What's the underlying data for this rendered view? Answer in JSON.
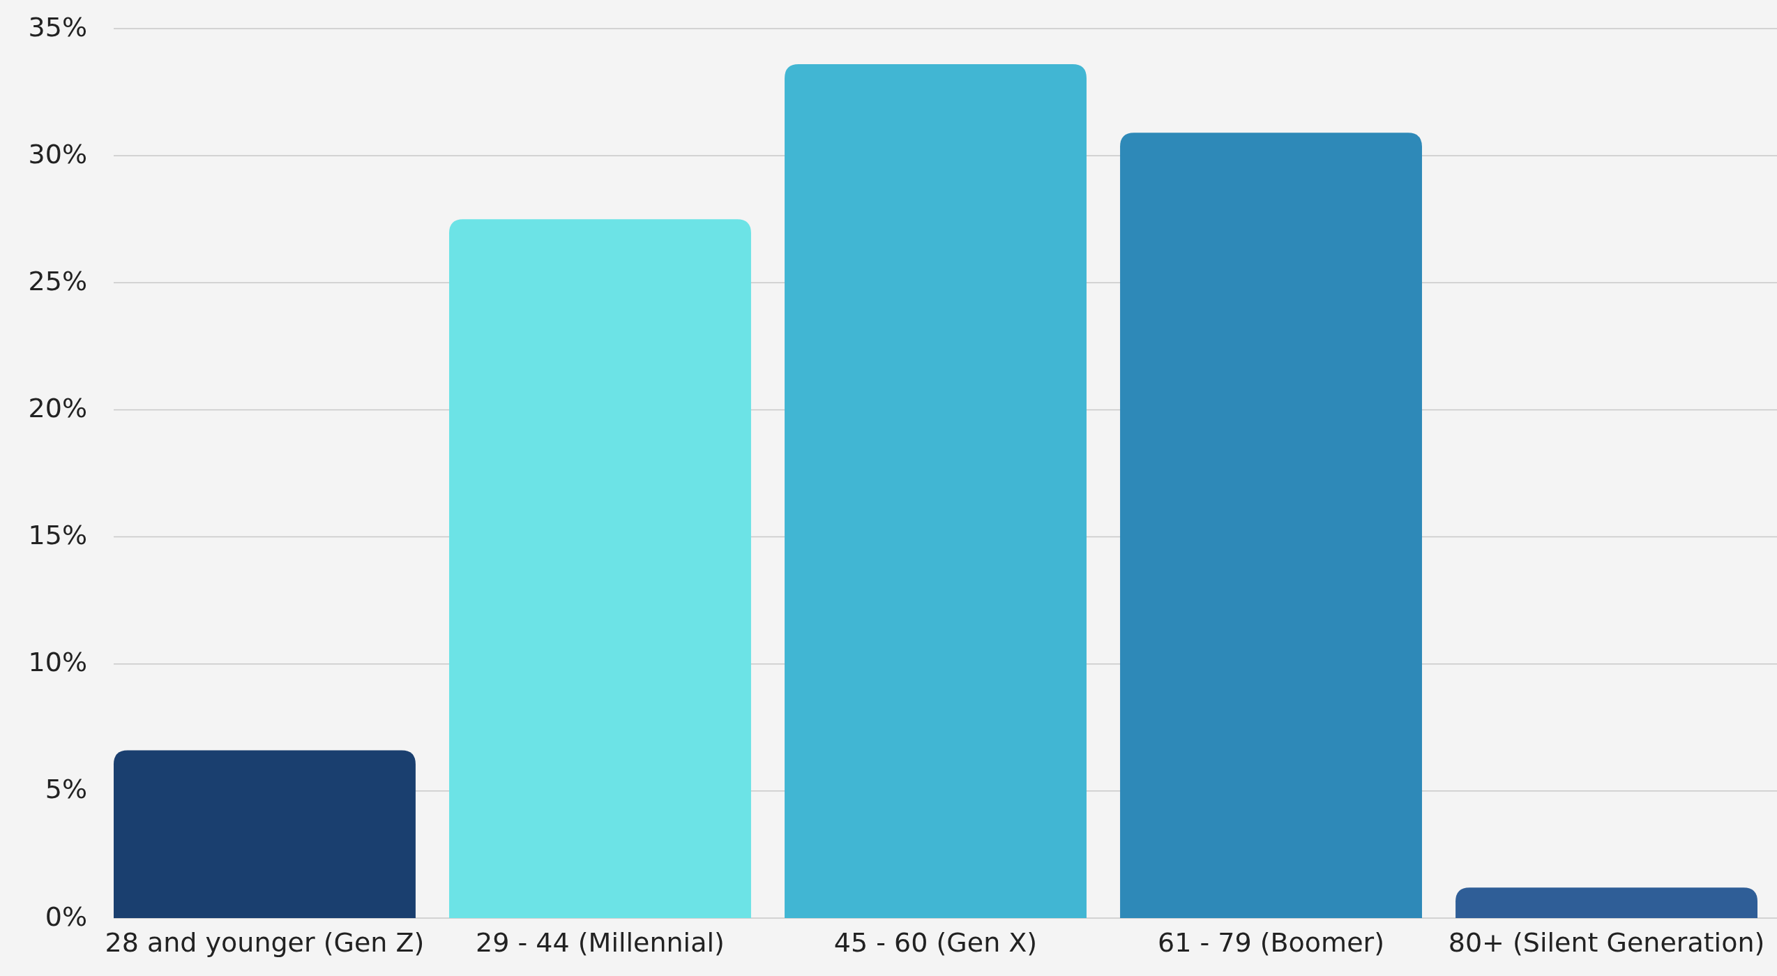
{
  "chart_data": {
    "type": "bar",
    "categories": [
      "28 and younger (Gen Z)",
      "29 - 44 (Millennial)",
      "45 - 60 (Gen X)",
      "61 - 79 (Boomer)",
      "80+ (Silent Generation)"
    ],
    "values": [
      6.6,
      27.5,
      33.6,
      30.9,
      1.2
    ],
    "colors": [
      "#1a3f6f",
      "#6ce3e6",
      "#41b6d3",
      "#2e89b8",
      "#2f5e97"
    ],
    "ylim": [
      0,
      35
    ],
    "yticks": [
      {
        "value": 0,
        "label": "0%"
      },
      {
        "value": 5,
        "label": "5%"
      },
      {
        "value": 10,
        "label": "10%"
      },
      {
        "value": 15,
        "label": "15%"
      },
      {
        "value": 20,
        "label": "20%"
      },
      {
        "value": 25,
        "label": "25%"
      },
      {
        "value": 30,
        "label": "30%"
      },
      {
        "value": 35,
        "label": "35%"
      }
    ],
    "grid": "y"
  }
}
